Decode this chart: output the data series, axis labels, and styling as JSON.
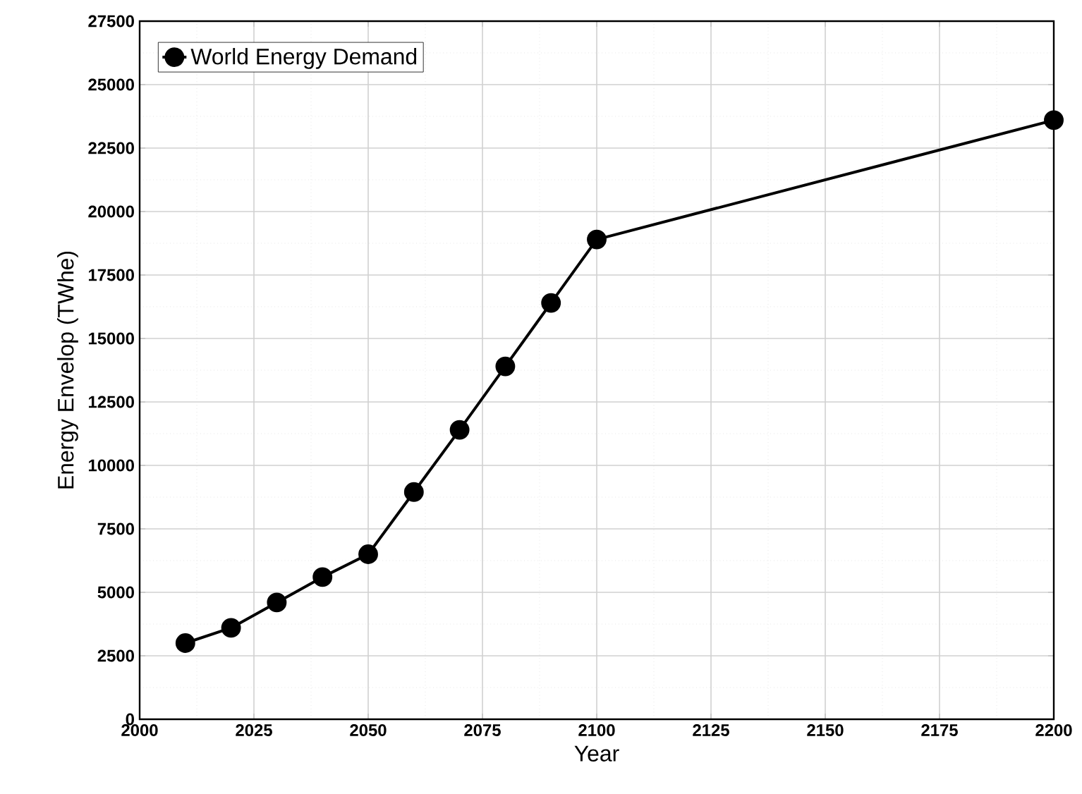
{
  "chart_data": {
    "type": "line",
    "xlabel": "Year",
    "ylabel": "Energy Envelop (TWhe)",
    "x": [
      2010,
      2020,
      2030,
      2040,
      2050,
      2060,
      2070,
      2080,
      2090,
      2100,
      2200
    ],
    "series": [
      {
        "name": "World Energy Demand",
        "color": "#000000",
        "values": [
          3000,
          3600,
          4600,
          5600,
          6500,
          8950,
          11400,
          13900,
          16400,
          18900,
          23600
        ]
      }
    ],
    "xlim": [
      2000,
      2200
    ],
    "xticks": [
      2000,
      2025,
      2050,
      2075,
      2100,
      2125,
      2150,
      2175,
      2200
    ],
    "ylim": [
      0,
      27500
    ],
    "yticks": [
      0,
      2500,
      5000,
      7500,
      10000,
      12500,
      15000,
      17500,
      20000,
      22500,
      25000,
      27500
    ],
    "grid": true,
    "legend": "top left",
    "marker": "circle",
    "line_style": "solid"
  }
}
